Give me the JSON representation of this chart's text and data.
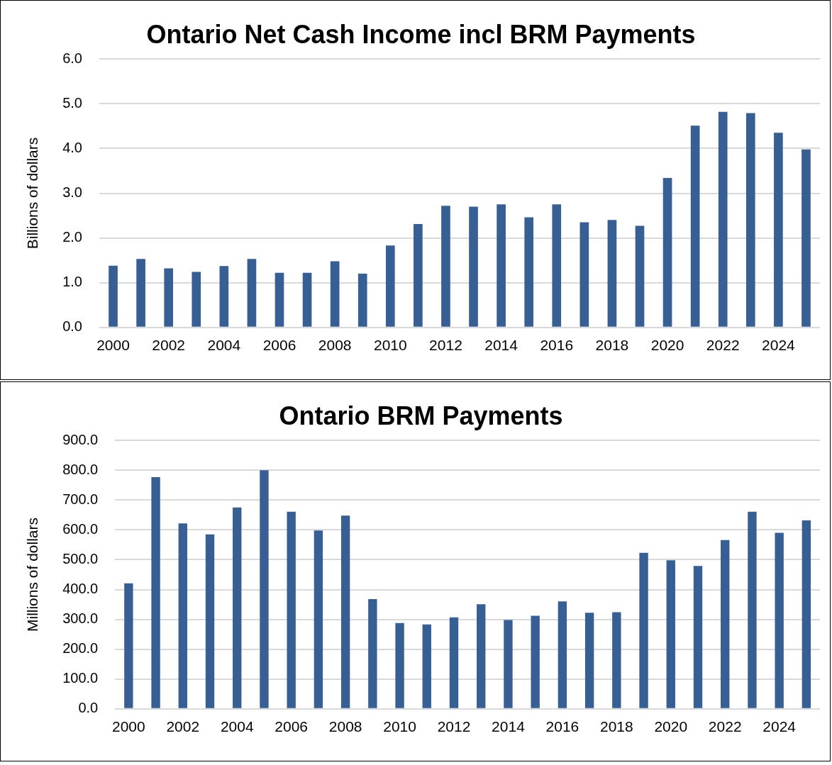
{
  "chart_data": [
    {
      "type": "bar",
      "title": "Ontario Net Cash Income incl BRM Payments",
      "ylabel": "Billions of dollars",
      "categories": [
        "2000",
        null,
        "2002",
        null,
        "2004",
        null,
        "2006",
        null,
        "2008",
        null,
        "2010",
        null,
        "2012",
        null,
        "2014",
        null,
        "2016",
        null,
        "2018",
        null,
        "2020",
        null,
        "2022",
        null,
        "2024",
        null
      ],
      "values": [
        1.38,
        1.53,
        1.32,
        1.24,
        1.37,
        1.53,
        1.22,
        1.22,
        1.48,
        1.2,
        1.83,
        2.31,
        2.72,
        2.7,
        2.75,
        2.46,
        2.75,
        2.35,
        2.4,
        2.27,
        3.34,
        4.51,
        4.82,
        4.79,
        4.35,
        3.98
      ],
      "color": "#375f93",
      "ylim": [
        0,
        6
      ],
      "yticks": [
        {
          "value": 0,
          "label": "0.0"
        },
        {
          "value": 1,
          "label": "1.0"
        },
        {
          "value": 2,
          "label": "2.0"
        },
        {
          "value": 3,
          "label": "3.0"
        },
        {
          "value": 4,
          "label": "4.0"
        },
        {
          "value": 5,
          "label": "5.0"
        },
        {
          "value": 6,
          "label": "6.0"
        }
      ],
      "grid": "y",
      "legend": false
    },
    {
      "type": "bar",
      "title": "Ontario BRM Payments",
      "ylabel": "Millions of dollars",
      "categories": [
        "2000",
        null,
        "2002",
        null,
        "2004",
        null,
        "2006",
        null,
        "2008",
        null,
        "2010",
        null,
        "2012",
        null,
        "2014",
        null,
        "2016",
        null,
        "2018",
        null,
        "2020",
        null,
        "2022",
        null,
        "2024",
        null
      ],
      "values": [
        421,
        777,
        622,
        585,
        675,
        800,
        661,
        598,
        648,
        368,
        288,
        283,
        307,
        351,
        298,
        312,
        360,
        322,
        324,
        523,
        498,
        479,
        566,
        661,
        590,
        632
      ],
      "color": "#375f93",
      "ylim": [
        0,
        900
      ],
      "yticks": [
        {
          "value": 0,
          "label": "0.0"
        },
        {
          "value": 100,
          "label": "100.0"
        },
        {
          "value": 200,
          "label": "200.0"
        },
        {
          "value": 300,
          "label": "300.0"
        },
        {
          "value": 400,
          "label": "400.0"
        },
        {
          "value": 500,
          "label": "500.0"
        },
        {
          "value": 600,
          "label": "600.0"
        },
        {
          "value": 700,
          "label": "700.0"
        },
        {
          "value": 800,
          "label": "800.0"
        },
        {
          "value": 900,
          "label": "900.0"
        }
      ],
      "grid": "y",
      "legend": false
    }
  ]
}
